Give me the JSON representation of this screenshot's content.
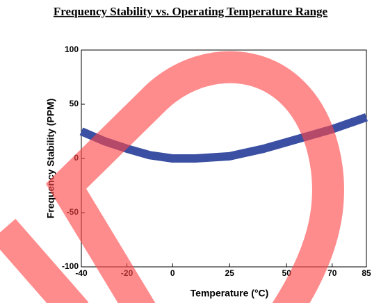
{
  "chart_data": {
    "type": "line",
    "title": "Frequency Stability vs. Operating Temperature Range",
    "x_label": "Temperature (°C)",
    "y_label": "Frequency Stability (PPM)",
    "x": [
      -40,
      -30,
      -20,
      -10,
      0,
      10,
      25,
      40,
      50,
      60,
      70,
      85
    ],
    "series": [
      {
        "color": "#3b4fa3",
        "values": [
          25,
          16,
          9,
          3,
          0,
          0,
          2,
          9,
          15,
          21,
          27,
          38
        ]
      }
    ],
    "xlim": [
      -40,
      85
    ],
    "xticks": [
      -40,
      -20,
      0,
      25,
      50,
      70,
      85
    ],
    "ylim": [
      -100,
      100
    ],
    "yticks": [
      -100,
      -50,
      0,
      50,
      100
    ]
  }
}
